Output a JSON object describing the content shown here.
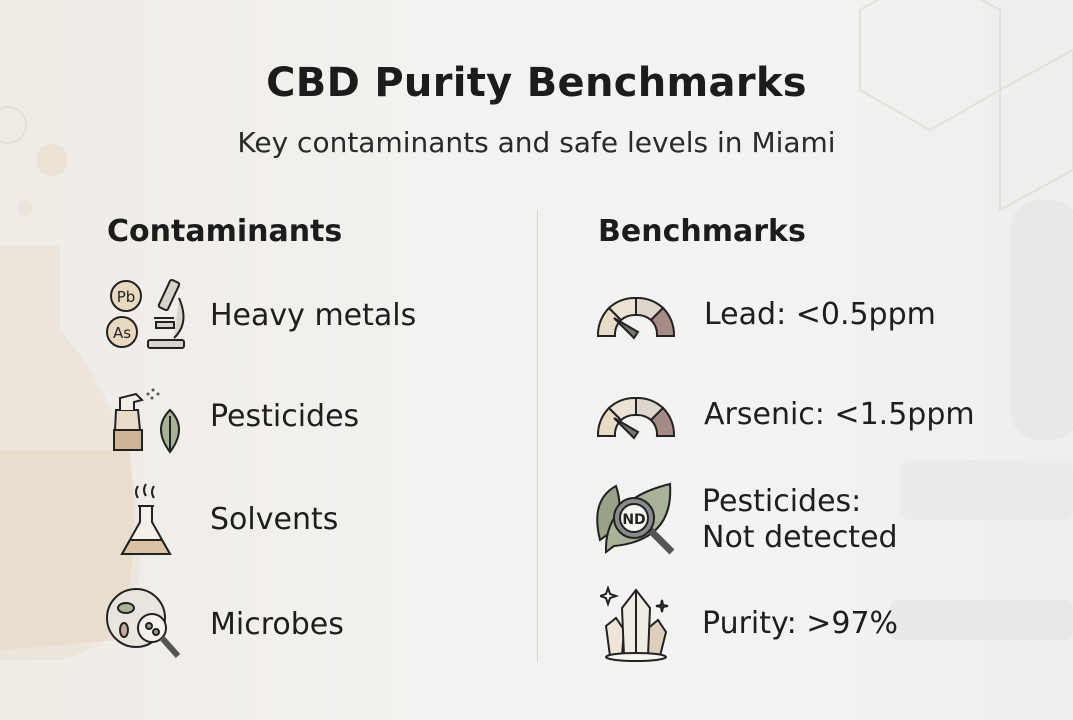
{
  "title": "CBD Purity Benchmarks",
  "subtitle": "Key contaminants and safe levels in Miami",
  "contaminants": {
    "heading": "Contaminants",
    "items": [
      {
        "label": "Heavy metals",
        "icon": "heavy-metals-microscope-icon",
        "badges": [
          "Pb",
          "As"
        ]
      },
      {
        "label": "Pesticides",
        "icon": "spray-bottle-leaf-icon"
      },
      {
        "label": "Solvents",
        "icon": "flask-icon"
      },
      {
        "label": "Microbes",
        "icon": "petri-dish-magnifier-icon"
      }
    ]
  },
  "benchmarks": {
    "heading": "Benchmarks",
    "items": [
      {
        "label": "Lead: <0.5ppm",
        "icon": "gauge-icon"
      },
      {
        "label": "Arsenic: <1.5ppm",
        "icon": "gauge-icon"
      },
      {
        "label_line1": "Pesticides:",
        "label_line2": "Not detected",
        "icon": "leaf-magnifier-icon",
        "badge": "ND"
      },
      {
        "label": "Purity: >97%",
        "icon": "crystal-icon"
      }
    ]
  },
  "colors": {
    "ink": "#1c1c1c",
    "beige": "#e6d9c4",
    "sage": "#a7b296",
    "mauve": "#a58a86",
    "gray": "#7a7874"
  }
}
